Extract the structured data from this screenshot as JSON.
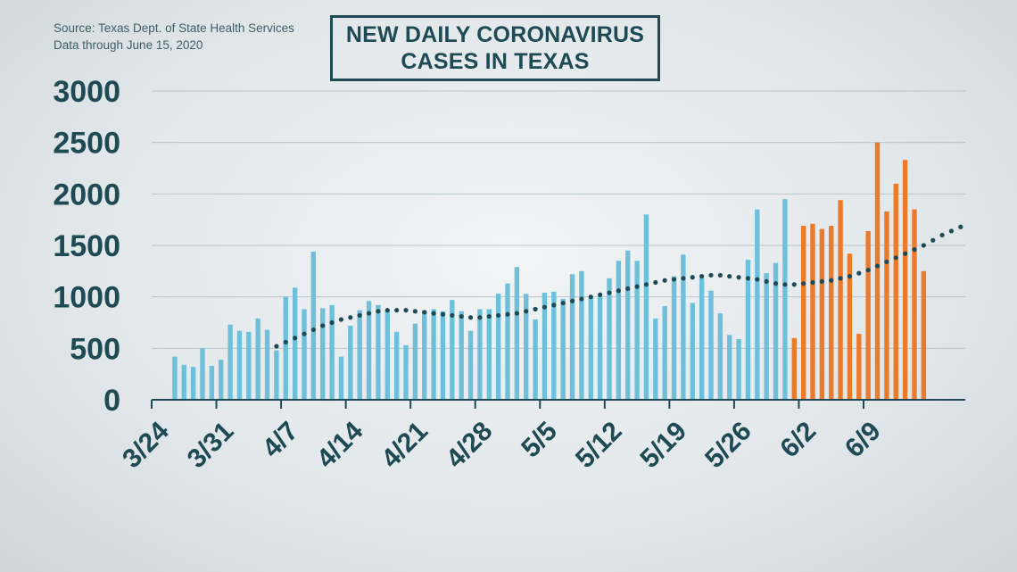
{
  "source": {
    "line1": "Source: Texas Dept. of State Health Services",
    "line2": "Data through  June 15, 2020"
  },
  "title": {
    "line1": "NEW DAILY CORONAVIRUS",
    "line2": "CASES IN TEXAS"
  },
  "chart_data": {
    "type": "bar",
    "title": "NEW DAILY CORONAVIRUS CASES IN TEXAS",
    "ylim": [
      0,
      3000
    ],
    "yticks": [
      0,
      500,
      1000,
      1500,
      2000,
      2500,
      3000
    ],
    "xtick_labels": [
      "3/24",
      "3/31",
      "4/7",
      "4/14",
      "4/21",
      "4/28",
      "5/5",
      "5/12",
      "5/19",
      "5/26",
      "6/2",
      "6/9"
    ],
    "grid": true,
    "colors": {
      "earlier": "#6ec0da",
      "recent": "#ec7a2b",
      "trend": "#1e4a54",
      "axis": "#1e4a54"
    },
    "first_date": "3/24",
    "series": [
      {
        "values": [
          0,
          0,
          420,
          340,
          320,
          500,
          330,
          390,
          730,
          670,
          660,
          790,
          680,
          480,
          1000,
          1090,
          880,
          1440,
          890,
          920,
          420,
          720,
          870,
          960,
          920,
          870,
          660,
          530,
          740,
          870,
          880,
          860,
          970,
          860,
          670,
          880,
          880,
          1030,
          1130,
          1290,
          1030,
          780,
          1040,
          1050,
          980,
          1220,
          1250,
          1000,
          1000,
          1180,
          1350,
          1450,
          1350,
          1800,
          790,
          910,
          1200,
          1410,
          940,
          1180,
          1060,
          840,
          630,
          590,
          1360,
          1850,
          1230,
          1330,
          1950,
          0,
          0,
          0,
          0,
          0,
          0,
          0,
          0,
          0,
          0,
          0,
          0,
          0,
          0,
          0,
          0,
          0,
          0,
          0
        ]
      },
      {
        "values": [
          0,
          0,
          0,
          0,
          0,
          0,
          0,
          0,
          0,
          0,
          0,
          0,
          0,
          0,
          0,
          0,
          0,
          0,
          0,
          0,
          0,
          0,
          0,
          0,
          0,
          0,
          0,
          0,
          0,
          0,
          0,
          0,
          0,
          0,
          0,
          0,
          0,
          0,
          0,
          0,
          0,
          0,
          0,
          0,
          0,
          0,
          0,
          0,
          0,
          0,
          0,
          0,
          0,
          0,
          0,
          0,
          0,
          0,
          0,
          0,
          0,
          0,
          0,
          0,
          0,
          0,
          0,
          0,
          0,
          600,
          1690,
          1710,
          1660,
          1690,
          1940,
          1420,
          640,
          1640,
          2500,
          1830,
          2100,
          2330,
          1850,
          1250
        ]
      }
    ],
    "trendline": [
      {
        "from_index": 13,
        "to_index": 87,
        "values": [
          520,
          560,
          600,
          640,
          680,
          720,
          750,
          780,
          800,
          820,
          840,
          860,
          870,
          870,
          870,
          860,
          850,
          840,
          830,
          820,
          810,
          800,
          800,
          810,
          820,
          830,
          840,
          860,
          880,
          900,
          920,
          940,
          960,
          980,
          1000,
          1020,
          1040,
          1060,
          1080,
          1100,
          1120,
          1140,
          1160,
          1170,
          1180,
          1190,
          1200,
          1210,
          1210,
          1200,
          1190,
          1180,
          1170,
          1150,
          1130,
          1120,
          1120,
          1130,
          1140,
          1150,
          1160,
          1180,
          1200,
          1230,
          1260,
          1300,
          1340,
          1380,
          1420,
          1460,
          1500,
          1550,
          1600,
          1640,
          1680
        ]
      }
    ]
  }
}
